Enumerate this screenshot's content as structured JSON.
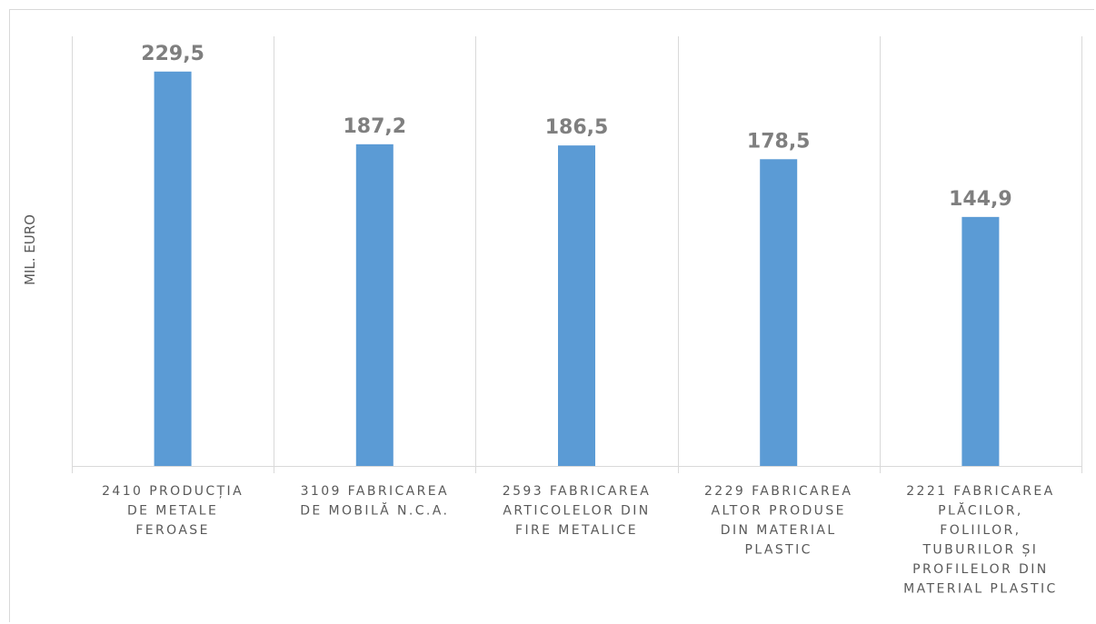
{
  "chart_data": {
    "type": "bar",
    "title": "",
    "xlabel": "",
    "ylabel": "MIL. EURO",
    "ylim": [
      0,
      250
    ],
    "grid": "vertical-category-separators",
    "legend": "none",
    "bar_color": "#5b9bd5",
    "categories": [
      [
        "2410 PRODUCȚIA",
        "DE METALE",
        "FEROASE"
      ],
      [
        "3109 FABRICAREA",
        "DE MOBILĂ N.C.A."
      ],
      [
        "2593 FABRICAREA",
        "ARTICOLELOR DIN",
        "FIRE METALICE"
      ],
      [
        "2229 FABRICAREA",
        "ALTOR PRODUSE",
        "DIN MATERIAL",
        "PLASTIC"
      ],
      [
        "2221 FABRICAREA",
        "PLĂCILOR,",
        "FOLIILOR,",
        "TUBURILOR ȘI",
        "PROFILELOR DIN",
        "MATERIAL PLASTIC"
      ]
    ],
    "values": [
      229.5,
      187.2,
      186.5,
      178.5,
      144.9
    ],
    "data_labels": [
      "229,5",
      "187,2",
      "186,5",
      "178,5",
      "144,9"
    ]
  }
}
